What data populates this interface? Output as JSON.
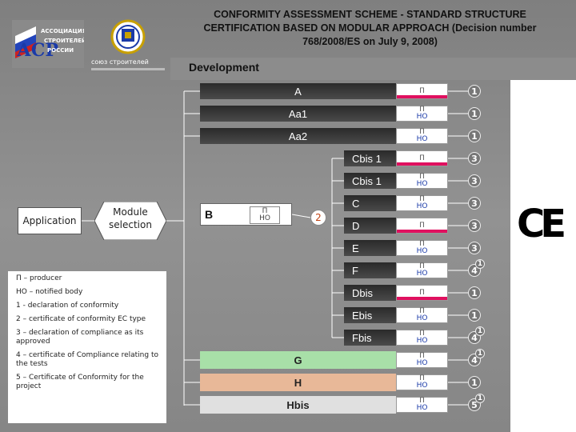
{
  "header": {
    "title_lines": [
      "CONFORMITY ASSESSMENT SCHEME - STANDARD STRUCTURE",
      "CERTIFICATION BASED ON MODULAR APPROACH (Decision number",
      "768/2008/ES on July 9, 2008)"
    ],
    "logo_left_lines": [
      "АССОЦИАЦИЯ",
      "СТРОИТЕЛЕЙ",
      "РОССИИ"
    ],
    "logo_left_letters": "АСР",
    "logo_right_caption": "союз строителей"
  },
  "development_label": "Development",
  "application_label": "Application",
  "module_selection_label": "Module selection",
  "b_module": {
    "label": "B",
    "producer": "П",
    "notified": "НО",
    "circle": "2"
  },
  "modules": [
    {
      "label": "A",
      "producer": "П",
      "notified": "",
      "pink": true,
      "result": "1",
      "extra": ""
    },
    {
      "label": "Aa1",
      "producer": "П",
      "notified": "НО",
      "pink": false,
      "result": "1",
      "extra": ""
    },
    {
      "label": "Aa2",
      "producer": "П",
      "notified": "НО",
      "pink": false,
      "result": "1",
      "extra": ""
    },
    {
      "label": "Cbis 1",
      "producer": "П",
      "notified": "",
      "pink": true,
      "result": "3",
      "extra": ""
    },
    {
      "label": "Cbis 1",
      "producer": "П",
      "notified": "НО",
      "pink": false,
      "result": "3",
      "extra": ""
    },
    {
      "label": "C",
      "producer": "П",
      "notified": "НО",
      "pink": false,
      "result": "3",
      "extra": ""
    },
    {
      "label": "D",
      "producer": "П",
      "notified": "",
      "pink": true,
      "result": "3",
      "extra": ""
    },
    {
      "label": "E",
      "producer": "П",
      "notified": "НО",
      "pink": false,
      "result": "3",
      "extra": ""
    },
    {
      "label": "F",
      "producer": "П",
      "notified": "НО",
      "pink": false,
      "result": "4",
      "extra": "1"
    },
    {
      "label": "Dbis",
      "producer": "П",
      "notified": "",
      "pink": true,
      "result": "1",
      "extra": ""
    },
    {
      "label": "Ebis",
      "producer": "П",
      "notified": "НО",
      "pink": false,
      "result": "1",
      "extra": ""
    },
    {
      "label": "Fbis",
      "producer": "П",
      "notified": "НО",
      "pink": false,
      "result": "4",
      "extra": "1"
    },
    {
      "label": "G",
      "producer": "П",
      "notified": "НО",
      "pink": false,
      "result": "4",
      "extra": "1"
    },
    {
      "label": "H",
      "producer": "П",
      "notified": "НО",
      "pink": false,
      "result": "1",
      "extra": ""
    },
    {
      "label": "Hbis",
      "producer": "П",
      "notified": "НО",
      "pink": false,
      "result": "5",
      "extra": "1"
    }
  ],
  "legend": [
    "П – producer",
    "НО – notified body",
    "1 - declaration of conformity",
    "2 – certificate of conformity EC type",
    "3 – declaration of compliance as its approved",
    "4 – certificate of Compliance relating to the tests",
    "5 – Certificate of Conformity for the project"
  ],
  "ce_mark": "CE",
  "colors": {
    "pink": "#e0105f",
    "notified_text": "#1a3aa8",
    "g_bar": "#a8e0a8",
    "h_bar": "#e8b898",
    "hbis_bar": "#e0e0e0"
  }
}
